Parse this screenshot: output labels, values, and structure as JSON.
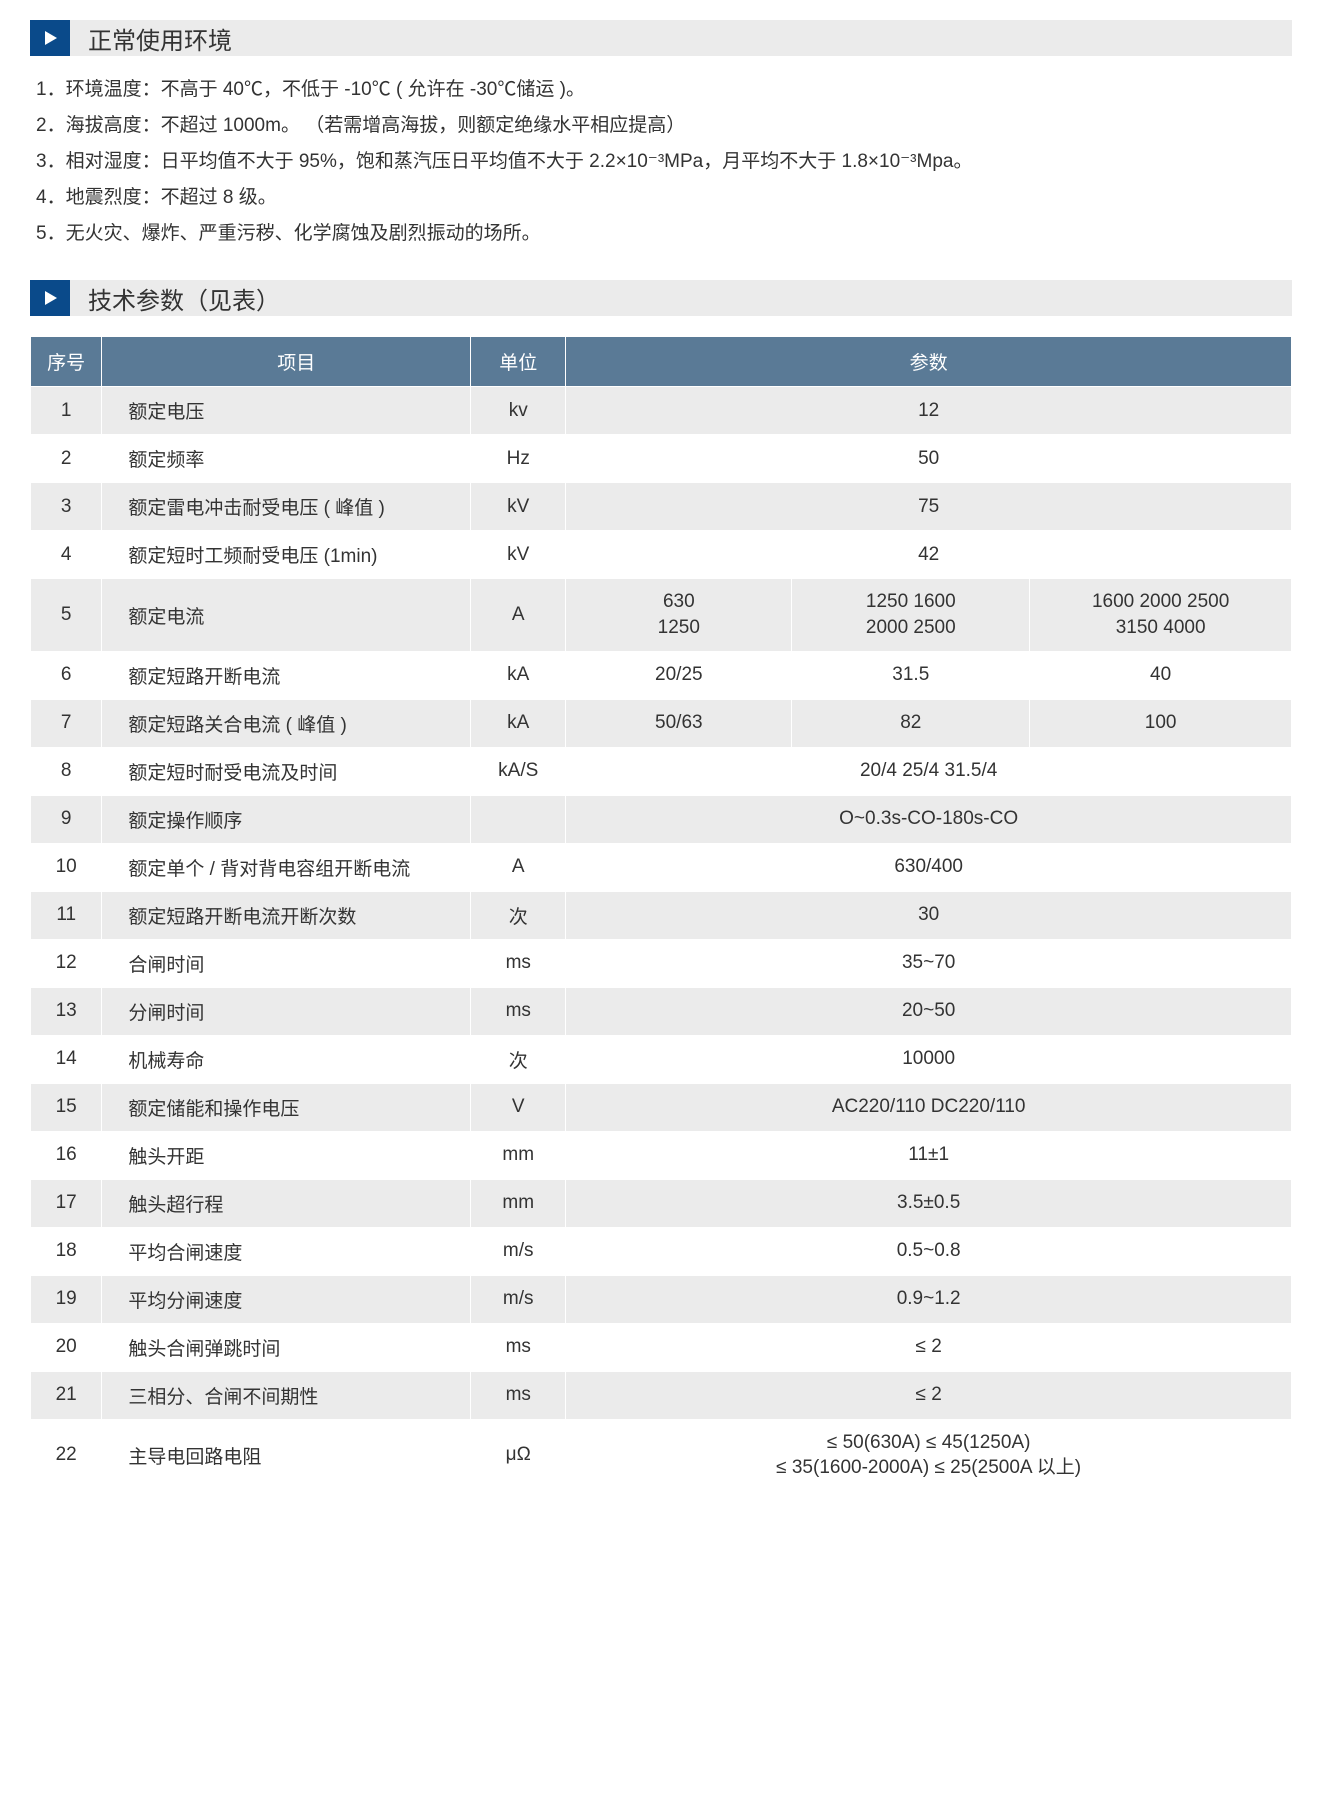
{
  "sections": {
    "env": {
      "title": "正常使用环境",
      "items": [
        "1．环境温度：不高于 40℃，不低于 -10℃ ( 允许在 -30℃储运 )。",
        "2．海拔高度：不超过 1000m。 （若需增高海拔，则额定绝缘水平相应提高）",
        "3．相对湿度：日平均值不大于 95%，饱和蒸汽压日平均值不大于 2.2×10⁻³MPa，月平均不大于 1.8×10⁻³Mpa。",
        "4．地震烈度：不超过 8 级。",
        "5．无火灾、爆炸、严重污秽、化学腐蚀及剧烈振动的场所。"
      ]
    },
    "spec": {
      "title": "技术参数（见表）",
      "headers": {
        "seq": "序号",
        "item": "项目",
        "unit": "单位",
        "param": "参数"
      },
      "rows": [
        {
          "seq": "1",
          "item": "额定电压",
          "unit": "kv",
          "params": [
            "12"
          ]
        },
        {
          "seq": "2",
          "item": "额定频率",
          "unit": "Hz",
          "params": [
            "50"
          ]
        },
        {
          "seq": "3",
          "item": "额定雷电冲击耐受电压 ( 峰值 )",
          "unit": "kV",
          "params": [
            "75"
          ]
        },
        {
          "seq": "4",
          "item": "额定短时工频耐受电压 (1min)",
          "unit": "kV",
          "params": [
            "42"
          ]
        },
        {
          "seq": "5",
          "item": "额定电流",
          "unit": "A",
          "params": [
            "630\n1250",
            "1250  1600\n2000  2500",
            "1600  2000  2500\n3150  4000"
          ],
          "tall": true
        },
        {
          "seq": "6",
          "item": "额定短路开断电流",
          "unit": "kA",
          "params": [
            "20/25",
            "31.5",
            "40"
          ]
        },
        {
          "seq": "7",
          "item": "额定短路关合电流 ( 峰值 )",
          "unit": "kA",
          "params": [
            "50/63",
            "82",
            "100"
          ]
        },
        {
          "seq": "8",
          "item": "额定短时耐受电流及时间",
          "unit": "kA/S",
          "params": [
            "20/4  25/4  31.5/4"
          ]
        },
        {
          "seq": "9",
          "item": "额定操作顺序",
          "unit": "",
          "params": [
            "O~0.3s-CO-180s-CO"
          ]
        },
        {
          "seq": "10",
          "item": "额定单个 / 背对背电容组开断电流",
          "unit": "A",
          "params": [
            "630/400"
          ]
        },
        {
          "seq": "11",
          "item": "额定短路开断电流开断次数",
          "unit": "次",
          "params": [
            "30"
          ]
        },
        {
          "seq": "12",
          "item": "合闸时间",
          "unit": "ms",
          "params": [
            "35~70"
          ]
        },
        {
          "seq": "13",
          "item": "分闸时间",
          "unit": "ms",
          "params": [
            "20~50"
          ]
        },
        {
          "seq": "14",
          "item": "机械寿命",
          "unit": "次",
          "params": [
            "10000"
          ]
        },
        {
          "seq": "15",
          "item": "额定储能和操作电压",
          "unit": "V",
          "params": [
            "AC220/110  DC220/110"
          ]
        },
        {
          "seq": "16",
          "item": "触头开距",
          "unit": "mm",
          "params": [
            "11±1"
          ]
        },
        {
          "seq": "17",
          "item": "触头超行程",
          "unit": "mm",
          "params": [
            "3.5±0.5"
          ]
        },
        {
          "seq": "18",
          "item": "平均合闸速度",
          "unit": "m/s",
          "params": [
            "0.5~0.8"
          ]
        },
        {
          "seq": "19",
          "item": "平均分闸速度",
          "unit": "m/s",
          "params": [
            "0.9~1.2"
          ]
        },
        {
          "seq": "20",
          "item": "触头合闸弹跳时间",
          "unit": "ms",
          "params": [
            "≤ 2"
          ]
        },
        {
          "seq": "21",
          "item": "三相分、合闸不间期性",
          "unit": "ms",
          "params": [
            "≤ 2"
          ]
        },
        {
          "seq": "22",
          "item": "主导电回路电阻",
          "unit": "μΩ",
          "params": [
            "≤ 50(630A) ≤ 45(1250A)\n≤ 35(1600-2000A) ≤ 25(2500A 以上)"
          ],
          "tall": true
        }
      ]
    }
  },
  "colors": {
    "header_bg": "#5a7a96",
    "header_text": "#ffffff",
    "row_alt_bg": "#ebebeb",
    "icon_bg": "#0a4a8a",
    "text": "#333333"
  }
}
